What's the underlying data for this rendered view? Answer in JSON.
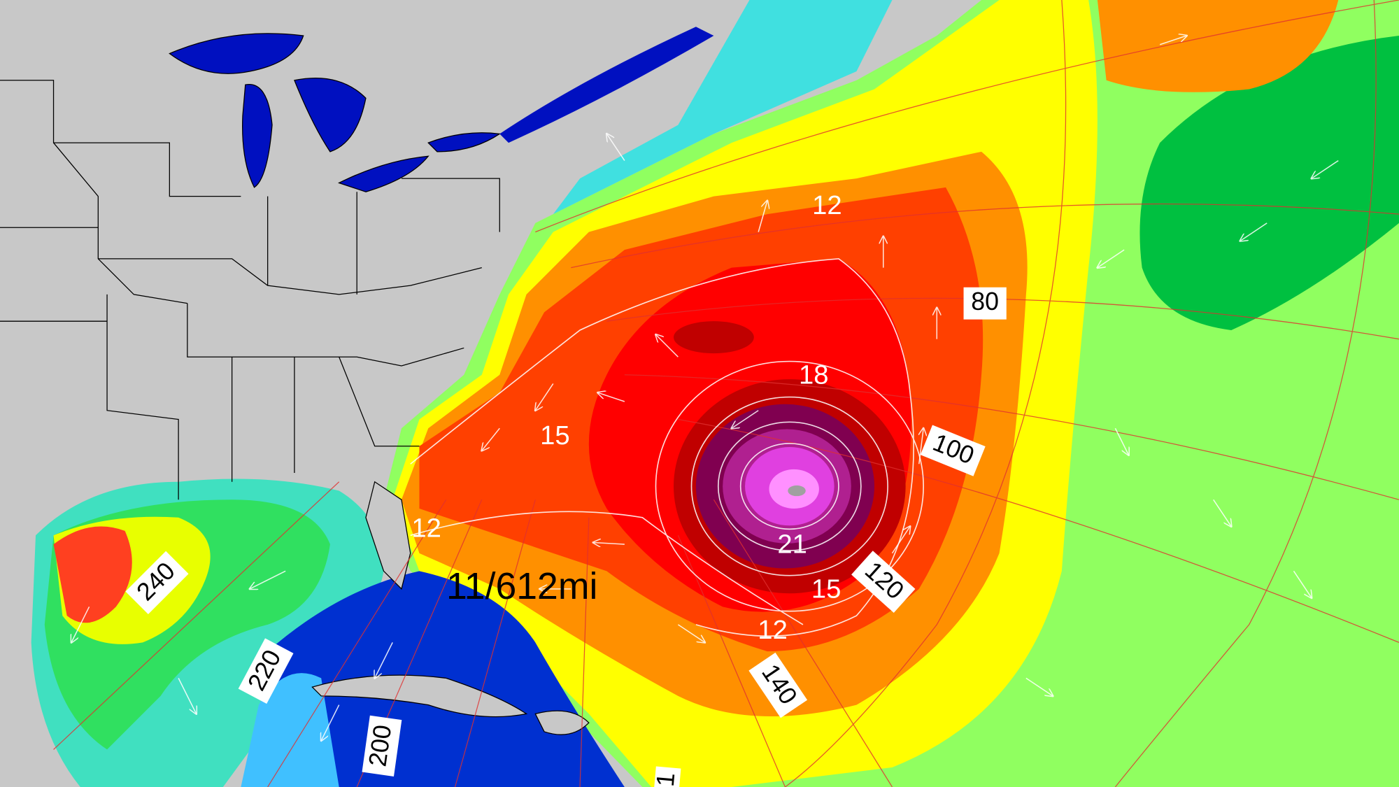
{
  "contour_labels": [
    "12",
    "15",
    "18",
    "21",
    "15",
    "12",
    "12"
  ],
  "bearing_labels": [
    "80",
    "100",
    "120",
    "140",
    "240",
    "220",
    "200",
    "1"
  ],
  "distance_label": "11/612mi"
}
